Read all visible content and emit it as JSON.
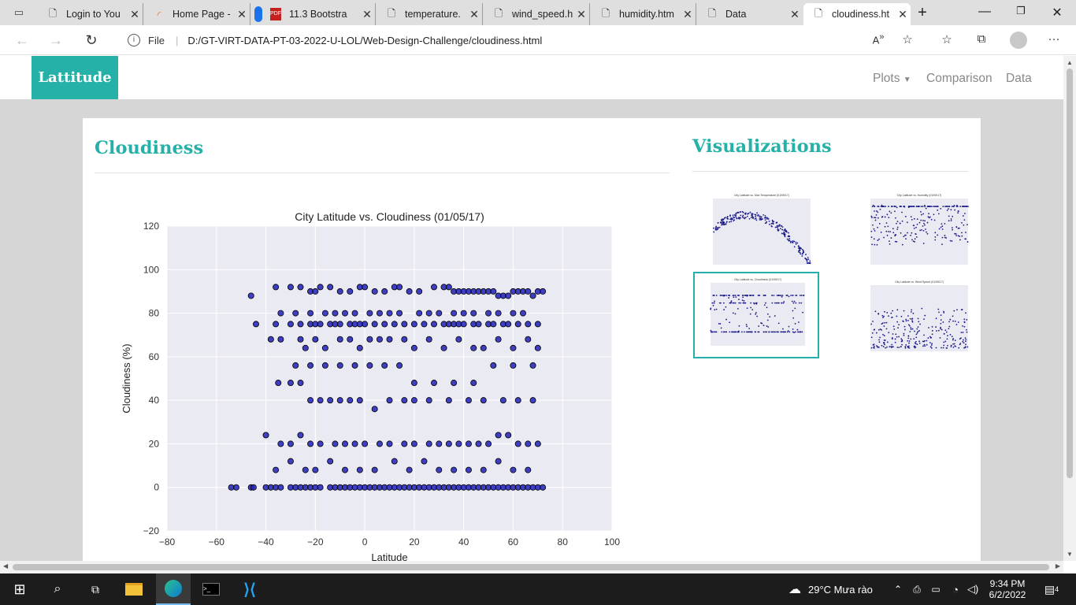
{
  "browser": {
    "tabs": [
      {
        "label": "Login to You",
        "icon": "document-icon"
      },
      {
        "label": "Home Page -",
        "icon": "loading-icon"
      },
      {
        "label": "11.3 Bootstra",
        "icon": "pdf-icon"
      },
      {
        "label": "temperature.",
        "icon": "document-icon"
      },
      {
        "label": "wind_speed.h",
        "icon": "document-icon"
      },
      {
        "label": "humidity.htm",
        "icon": "document-icon"
      },
      {
        "label": "Data",
        "icon": "document-icon"
      },
      {
        "label": "cloudiness.ht",
        "icon": "document-icon",
        "active": true
      }
    ],
    "url_prefix": "File",
    "url": "D:/GT-VIRT-DATA-PT-03-2022-U-LOL/Web-Design-Challenge/cloudiness.html"
  },
  "site": {
    "brand": "Lattitude",
    "nav": {
      "plots": "Plots",
      "comparison": "Comparison",
      "data": "Data"
    },
    "main_title": "Cloudiness",
    "side_title": "Visualizations"
  },
  "chart_data": {
    "type": "scatter",
    "title": "City Latitude vs. Cloudiness (01/05/17)",
    "xlabel": "Latitude",
    "ylabel": "Cloudiness (%)",
    "xlim": [
      -80,
      100
    ],
    "ylim": [
      -20,
      120
    ],
    "xticks": [
      "−80",
      "−60",
      "−40",
      "−20",
      "0",
      "20",
      "40",
      "60",
      "80",
      "100"
    ],
    "yticks": [
      "−20",
      "0",
      "20",
      "40",
      "60",
      "80",
      "100",
      "120"
    ],
    "grid": true,
    "color": "#2020b8",
    "series": [
      {
        "x": [
          -54,
          -52,
          -46,
          -45,
          -40,
          -38,
          -36,
          -34,
          -30,
          -28,
          -26,
          -24,
          -22,
          -20,
          -18,
          -14,
          -12,
          -10,
          -8,
          -6,
          -4,
          -2,
          0,
          2,
          4,
          6,
          8,
          10,
          12,
          14,
          16,
          18,
          20,
          22,
          24,
          26,
          28,
          30,
          32,
          34,
          36,
          38,
          40,
          42,
          44,
          46,
          48,
          50,
          52,
          54,
          56,
          58,
          60,
          62,
          64,
          66,
          68,
          70,
          72,
          -44,
          -36,
          -30,
          -26,
          -22,
          -20,
          -18,
          -14,
          -12,
          -10,
          -6,
          -4,
          -2,
          0,
          4,
          8,
          12,
          16,
          20,
          24,
          28,
          32,
          34,
          36,
          38,
          40,
          44,
          46,
          50,
          52,
          56,
          58,
          62,
          66,
          70
        ],
        "y": [
          0,
          0,
          0,
          0,
          0,
          0,
          0,
          0,
          0,
          0,
          0,
          0,
          0,
          0,
          0,
          0,
          0,
          0,
          0,
          0,
          0,
          0,
          0,
          0,
          0,
          0,
          0,
          0,
          0,
          0,
          0,
          0,
          0,
          0,
          0,
          0,
          0,
          0,
          0,
          0,
          0,
          0,
          0,
          0,
          0,
          0,
          0,
          0,
          0,
          0,
          0,
          0,
          0,
          0,
          0,
          0,
          0,
          0,
          0,
          75,
          75,
          75,
          75,
          75,
          75,
          75,
          75,
          75,
          75,
          75,
          75,
          75,
          75,
          75,
          75,
          75,
          75,
          75,
          75,
          75,
          75,
          75,
          75,
          75,
          75,
          75,
          75,
          75,
          75,
          75,
          75,
          75,
          75,
          75
        ]
      },
      {
        "x": [
          -46,
          -36,
          -30,
          -26,
          -22,
          -20,
          -18,
          -14,
          -10,
          -6,
          -2,
          0,
          4,
          8,
          12,
          14,
          18,
          22,
          28,
          32,
          34,
          36,
          38,
          40,
          42,
          44,
          46,
          48,
          50,
          52,
          54,
          56,
          58,
          60,
          62,
          64,
          66,
          68,
          70,
          72,
          -34,
          -28,
          -22,
          -16,
          -12,
          -8,
          -4,
          2,
          6,
          10,
          14,
          22,
          26,
          30,
          36,
          40,
          44,
          50,
          54,
          60,
          64,
          -38,
          -34,
          -26,
          -24,
          -20,
          -16,
          -10,
          -6,
          -2,
          2,
          6,
          10,
          16,
          20,
          26,
          32,
          38,
          44,
          48,
          54,
          60,
          66,
          70,
          -35,
          -30,
          -26,
          -22,
          -18,
          -14,
          -10,
          -6,
          -2,
          4,
          10,
          16,
          20,
          26,
          34,
          42,
          48,
          56,
          62,
          68
        ],
        "y": [
          88,
          92,
          92,
          92,
          90,
          90,
          92,
          92,
          90,
          90,
          92,
          92,
          90,
          90,
          92,
          92,
          90,
          90,
          92,
          92,
          92,
          90,
          90,
          90,
          90,
          90,
          90,
          90,
          90,
          90,
          88,
          88,
          88,
          90,
          90,
          90,
          90,
          88,
          90,
          90,
          80,
          80,
          80,
          80,
          80,
          80,
          80,
          80,
          80,
          80,
          80,
          80,
          80,
          80,
          80,
          80,
          80,
          80,
          80,
          80,
          80,
          68,
          68,
          68,
          64,
          68,
          64,
          68,
          68,
          64,
          68,
          68,
          68,
          68,
          64,
          68,
          64,
          68,
          64,
          64,
          68,
          64,
          68,
          64,
          48,
          48,
          48,
          40,
          40,
          40,
          40,
          40,
          40,
          36,
          40,
          40,
          40,
          40,
          40,
          40,
          40,
          40,
          40,
          40
        ]
      },
      {
        "x": [
          -40,
          -34,
          -30,
          -26,
          -22,
          -18,
          -12,
          -8,
          -4,
          0,
          6,
          10,
          16,
          20,
          26,
          30,
          34,
          38,
          42,
          46,
          50,
          54,
          58,
          62,
          66,
          70,
          -36,
          -30,
          -24,
          -20,
          -14,
          -8,
          -2,
          4,
          12,
          18,
          24,
          30,
          36,
          42,
          48,
          54,
          60,
          66,
          -28,
          -22,
          -16,
          -10,
          -4,
          2,
          8,
          14,
          20,
          28,
          36,
          44,
          52,
          60,
          68
        ],
        "y": [
          24,
          20,
          20,
          24,
          20,
          20,
          20,
          20,
          20,
          20,
          20,
          20,
          20,
          20,
          20,
          20,
          20,
          20,
          20,
          20,
          20,
          24,
          24,
          20,
          20,
          20,
          8,
          12,
          8,
          8,
          12,
          8,
          8,
          8,
          12,
          8,
          12,
          8,
          8,
          8,
          8,
          12,
          8,
          8,
          56,
          56,
          56,
          56,
          56,
          56,
          56,
          56,
          48,
          48,
          48,
          48,
          56,
          56,
          56
        ]
      }
    ]
  },
  "thumbnails": [
    {
      "title": "City Latitude vs. Max Temperature (01/05/17)",
      "name": "temperature-thumbnail"
    },
    {
      "title": "City Latitude vs. Humidity (01/05/17)",
      "name": "humidity-thumbnail"
    },
    {
      "title": "City Latitude vs. Cloudiness (01/05/17)",
      "name": "cloudiness-thumbnail",
      "selected": true
    },
    {
      "title": "City Latitude vs. Wind Speed (01/05/17)",
      "name": "wind-speed-thumbnail"
    }
  ],
  "taskbar": {
    "weather": "29°C  Mưa rào",
    "time": "9:34 PM",
    "date": "6/2/2022",
    "notifications": "4"
  }
}
